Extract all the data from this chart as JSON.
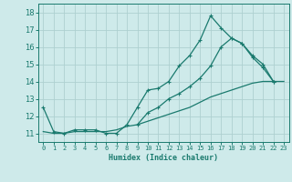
{
  "xlabel": "Humidex (Indice chaleur)",
  "bg_color": "#ceeaea",
  "grid_color": "#aed0d0",
  "line_color": "#1a7a6e",
  "spine_color": "#1a7a6e",
  "xlim": [
    -0.5,
    23.5
  ],
  "ylim": [
    10.5,
    18.5
  ],
  "xticks": [
    0,
    1,
    2,
    3,
    4,
    5,
    6,
    7,
    8,
    9,
    10,
    11,
    12,
    13,
    14,
    15,
    16,
    17,
    18,
    19,
    20,
    21,
    22,
    23
  ],
  "yticks": [
    11,
    12,
    13,
    14,
    15,
    16,
    17,
    18
  ],
  "line1_x": [
    0,
    1,
    2,
    3,
    4,
    5,
    6,
    7,
    8,
    9,
    10,
    11,
    12,
    13,
    14,
    15,
    16,
    17,
    18,
    19,
    20,
    21,
    22
  ],
  "line1_y": [
    12.5,
    11.1,
    11.0,
    11.2,
    11.2,
    11.2,
    11.0,
    11.0,
    11.5,
    12.5,
    13.5,
    13.6,
    14.0,
    14.9,
    15.5,
    16.4,
    17.8,
    17.1,
    16.5,
    16.2,
    15.4,
    14.8,
    14.0
  ],
  "line2_x": [
    9,
    10,
    11,
    12,
    13,
    14,
    15,
    16,
    17,
    18,
    19,
    20,
    21,
    22
  ],
  "line2_y": [
    11.5,
    12.2,
    12.5,
    13.0,
    13.3,
    13.7,
    14.2,
    14.9,
    16.0,
    16.5,
    16.2,
    15.5,
    15.0,
    14.0
  ],
  "line3_x": [
    0,
    1,
    2,
    3,
    4,
    5,
    6,
    7,
    8,
    9,
    10,
    11,
    12,
    13,
    14,
    15,
    16,
    17,
    18,
    19,
    20,
    21,
    22,
    23
  ],
  "line3_y": [
    11.1,
    11.0,
    11.0,
    11.1,
    11.1,
    11.1,
    11.1,
    11.2,
    11.4,
    11.5,
    11.7,
    11.9,
    12.1,
    12.3,
    12.5,
    12.8,
    13.1,
    13.3,
    13.5,
    13.7,
    13.9,
    14.0,
    14.0,
    14.0
  ]
}
